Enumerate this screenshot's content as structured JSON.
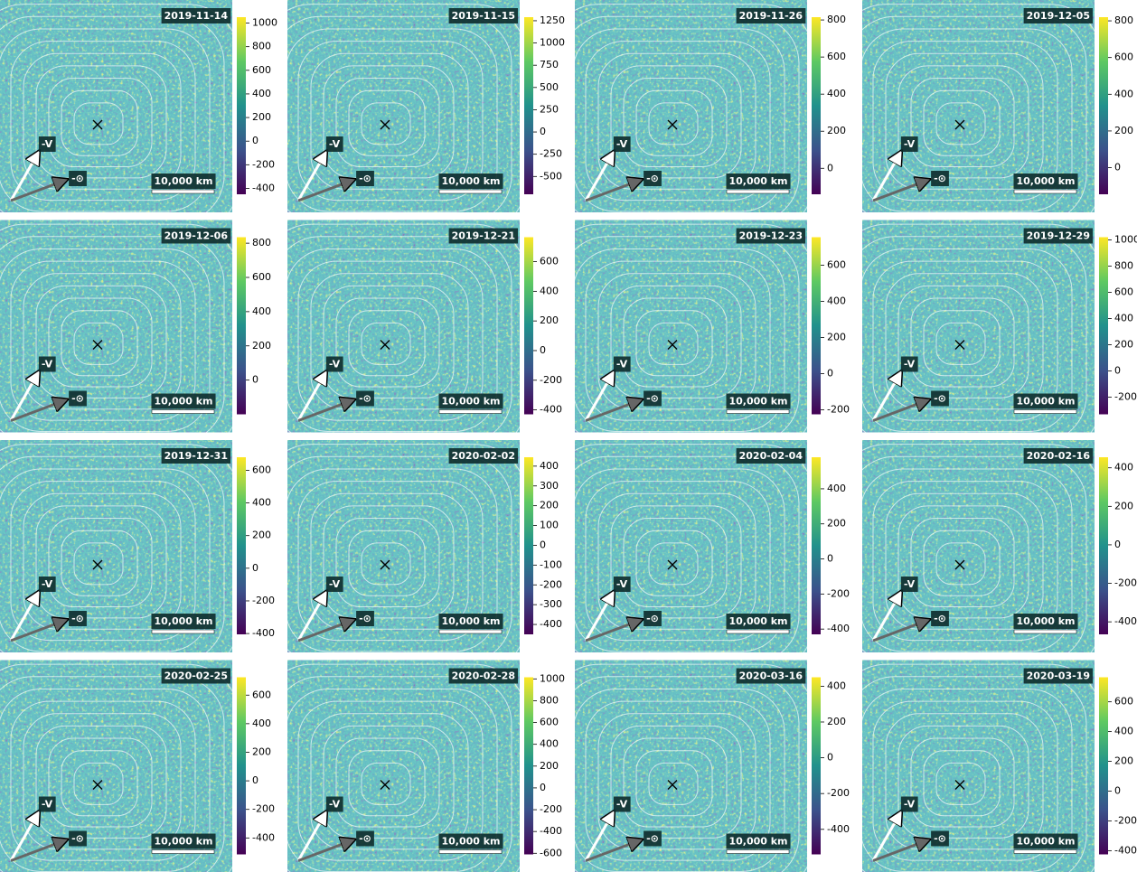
{
  "chart_data": [
    {
      "type": "heatmap",
      "title": "2019-11-14",
      "clim": [
        -450,
        1050
      ],
      "cticks": [
        -400,
        -200,
        0,
        200,
        400,
        600,
        800,
        1000
      ],
      "scale_label": "10,000 km",
      "labels": [
        "-V",
        "-⊙"
      ]
    },
    {
      "type": "heatmap",
      "title": "2019-11-15",
      "clim": [
        -700,
        1290
      ],
      "cticks": [
        -500,
        -250,
        0,
        250,
        500,
        750,
        1000,
        1250
      ],
      "scale_label": "10,000 km",
      "labels": [
        "-V",
        "-⊙"
      ]
    },
    {
      "type": "heatmap",
      "title": "2019-11-26",
      "clim": [
        -140,
        815
      ],
      "cticks": [
        0,
        200,
        400,
        600,
        800
      ],
      "scale_label": "10,000 km",
      "labels": [
        "-V",
        "-⊙"
      ]
    },
    {
      "type": "heatmap",
      "title": "2019-12-05",
      "clim": [
        -145,
        820
      ],
      "cticks": [
        0,
        200,
        400,
        600,
        800
      ],
      "scale_label": "10,000 km",
      "labels": [
        "-V",
        "-⊙"
      ]
    },
    {
      "type": "heatmap",
      "title": "2019-12-06",
      "clim": [
        -200,
        835
      ],
      "cticks": [
        0,
        200,
        400,
        600,
        800
      ],
      "scale_label": "10,000 km",
      "labels": [
        "-V",
        "-⊙"
      ]
    },
    {
      "type": "heatmap",
      "title": "2019-12-21",
      "clim": [
        -430,
        765
      ],
      "cticks": [
        -400,
        -200,
        0,
        200,
        400,
        600
      ],
      "scale_label": "10,000 km",
      "labels": [
        "-V",
        "-⊙"
      ]
    },
    {
      "type": "heatmap",
      "title": "2019-12-23",
      "clim": [
        -225,
        755
      ],
      "cticks": [
        -200,
        0,
        200,
        400,
        600
      ],
      "scale_label": "10,000 km",
      "labels": [
        "-V",
        "-⊙"
      ]
    },
    {
      "type": "heatmap",
      "title": "2019-12-29",
      "clim": [
        -330,
        1020
      ],
      "cticks": [
        -200,
        0,
        200,
        400,
        600,
        800,
        1000
      ],
      "scale_label": "10,000 km",
      "labels": [
        "-V",
        "-⊙"
      ]
    },
    {
      "type": "heatmap",
      "title": "2019-12-31",
      "clim": [
        -405,
        680
      ],
      "cticks": [
        -400,
        -200,
        0,
        200,
        400,
        600
      ],
      "scale_label": "10,000 km",
      "labels": [
        "-V",
        "-⊙"
      ]
    },
    {
      "type": "heatmap",
      "title": "2020-02-02",
      "clim": [
        -450,
        445
      ],
      "cticks": [
        -400,
        -300,
        -200,
        -100,
        0,
        100,
        200,
        300,
        400
      ],
      "scale_label": "10,000 km",
      "labels": [
        "-V",
        "-⊙"
      ]
    },
    {
      "type": "heatmap",
      "title": "2020-02-04",
      "clim": [
        -430,
        580
      ],
      "cticks": [
        -400,
        -200,
        0,
        200,
        400
      ],
      "scale_label": "10,000 km",
      "labels": [
        "-V",
        "-⊙"
      ]
    },
    {
      "type": "heatmap",
      "title": "2020-02-16",
      "clim": [
        -465,
        455
      ],
      "cticks": [
        -400,
        -200,
        0,
        200,
        400
      ],
      "scale_label": "10,000 km",
      "labels": [
        "-V",
        "-⊙"
      ]
    },
    {
      "type": "heatmap",
      "title": "2020-02-25",
      "clim": [
        -515,
        725
      ],
      "cticks": [
        -400,
        -200,
        0,
        200,
        400,
        600
      ],
      "scale_label": "10,000 km",
      "labels": [
        "-V",
        "-⊙"
      ]
    },
    {
      "type": "heatmap",
      "title": "2020-02-28",
      "clim": [
        -610,
        1015
      ],
      "cticks": [
        -600,
        -400,
        -200,
        0,
        200,
        400,
        600,
        800,
        1000
      ],
      "scale_label": "10,000 km",
      "labels": [
        "-V",
        "-⊙"
      ]
    },
    {
      "type": "heatmap",
      "title": "2020-03-16",
      "clim": [
        -540,
        450
      ],
      "cticks": [
        -400,
        -200,
        0,
        200,
        400
      ],
      "scale_label": "10,000 km",
      "labels": [
        "-V",
        "-⊙"
      ]
    },
    {
      "type": "heatmap",
      "title": "2020-03-19",
      "clim": [
        -425,
        765
      ],
      "cticks": [
        -400,
        -200,
        0,
        200,
        400,
        600
      ],
      "scale_label": "10,000 km",
      "labels": [
        "-V",
        "-⊙"
      ]
    }
  ]
}
